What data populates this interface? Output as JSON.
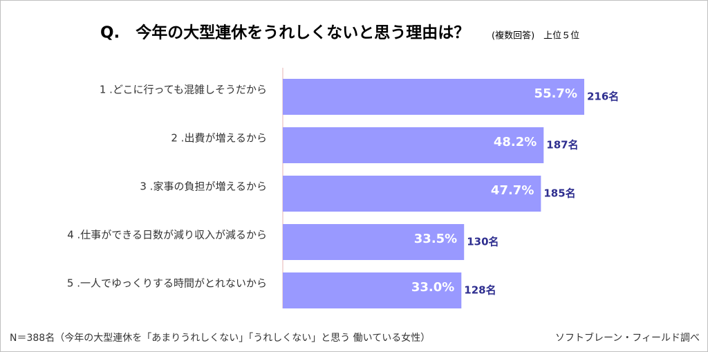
{
  "chart_data": {
    "type": "bar",
    "orientation": "horizontal",
    "title": "Q.　今年の大型連休をうれしくないと思う理由は？",
    "subtitle": "(複数回答)　上位５位",
    "categories": [
      "1 .どこに行っても混雑しそうだから",
      "2 .出費が増えるから",
      "3 .家事の負担が増えるから",
      "4 .仕事ができる日数が減り収入が減るから",
      "5 .一人でゆっくりする時間がとれないから"
    ],
    "values": [
      55.7,
      48.2,
      47.7,
      33.5,
      33.0
    ],
    "value_labels": [
      "55.7%",
      "48.2%",
      "47.7%",
      "33.5%",
      "33.0%"
    ],
    "count_labels": [
      "216名",
      "187名",
      "185名",
      "130名",
      "128名"
    ],
    "color": "#9999ff",
    "footnote": "N＝388名（今年の大型連休を「あまりうれしくない」「うれしくない」と思う 働いている女性）",
    "source": "ソフトブレーン・フィールド調べ"
  }
}
